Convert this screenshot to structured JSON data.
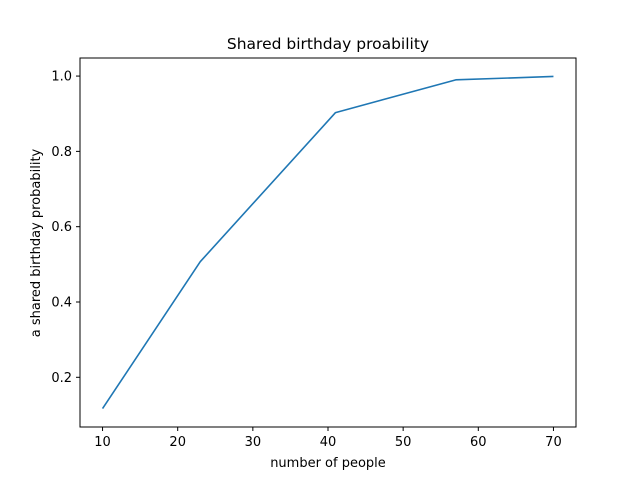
{
  "chart_data": {
    "type": "line",
    "title": "Shared birthday proability",
    "xlabel": "number of people",
    "ylabel": "a shared birthday probability",
    "xlim": [
      7,
      73
    ],
    "ylim": [
      0.068,
      1.048
    ],
    "xticks": [
      10,
      20,
      30,
      40,
      50,
      60,
      70
    ],
    "yticks": [
      0.2,
      0.4,
      0.6,
      0.8,
      1.0
    ],
    "xtick_labels": [
      "10",
      "20",
      "30",
      "40",
      "50",
      "60",
      "70"
    ],
    "ytick_labels": [
      "0.2",
      "0.4",
      "0.6",
      "0.8",
      "1.0"
    ],
    "grid": false,
    "legend": "none",
    "series": [
      {
        "color": "#1f77b4",
        "x": [
          10,
          23,
          41,
          57,
          70
        ],
        "y": [
          0.117,
          0.507,
          0.903,
          0.99,
          0.999
        ]
      }
    ]
  }
}
